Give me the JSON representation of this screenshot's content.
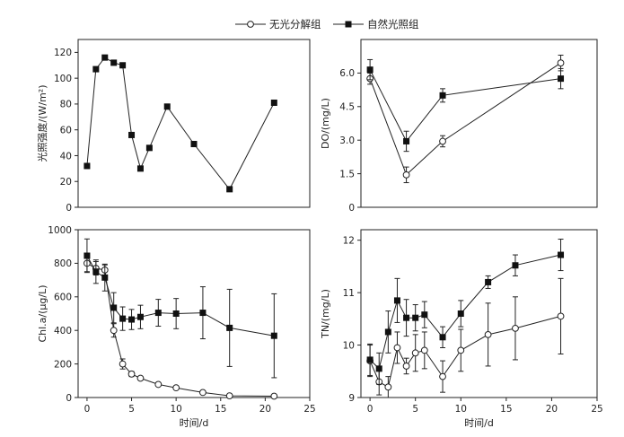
{
  "legend": {
    "series_dark": "无光分解组",
    "series_light": "自然光照组"
  },
  "chart_data": [
    {
      "id": "light",
      "type": "line",
      "ylabel": "光照强度/(W/m²)",
      "xlabel": "",
      "xlim": [
        -1,
        25
      ],
      "ylim": [
        0,
        130
      ],
      "xticks": [],
      "yticks": [
        0,
        20,
        40,
        60,
        80,
        100,
        120
      ],
      "series": [
        {
          "key": "light",
          "marker": "square",
          "x": [
            0,
            1,
            2,
            3,
            4,
            5,
            6,
            7,
            9,
            12,
            16,
            21
          ],
          "y": [
            32,
            107,
            116,
            112,
            110,
            56,
            30,
            46,
            78,
            49,
            14,
            81
          ]
        }
      ]
    },
    {
      "id": "do",
      "type": "line",
      "ylabel": "DO/(mg/L)",
      "xlabel": "",
      "xlim": [
        -1,
        25
      ],
      "ylim": [
        0,
        7.5
      ],
      "xticks": [],
      "yticks": [
        "0",
        "1.5",
        "3.0",
        "4.5",
        "6.0"
      ],
      "series": [
        {
          "key": "dark",
          "marker": "circle",
          "x": [
            0,
            4,
            8,
            21
          ],
          "y": [
            5.75,
            1.45,
            2.95,
            6.45
          ],
          "err": [
            0.25,
            0.35,
            0.25,
            0.35
          ]
        },
        {
          "key": "light",
          "marker": "square",
          "x": [
            0,
            4,
            8,
            21
          ],
          "y": [
            6.15,
            2.95,
            5.0,
            5.75
          ],
          "err": [
            0.45,
            0.45,
            0.3,
            0.45
          ]
        }
      ]
    },
    {
      "id": "chla",
      "type": "line",
      "ylabel": "Chl.a/(μg/L)",
      "xlabel": "时间/d",
      "xlim": [
        -1,
        25
      ],
      "ylim": [
        0,
        1000
      ],
      "xticks": [
        0,
        5,
        10,
        15,
        20,
        25
      ],
      "yticks": [
        0,
        200,
        400,
        600,
        800,
        1000
      ],
      "series": [
        {
          "key": "dark",
          "marker": "circle",
          "x": [
            0,
            1,
            2,
            3,
            4,
            5,
            6,
            8,
            10,
            13,
            16,
            21
          ],
          "y": [
            800,
            770,
            760,
            400,
            200,
            140,
            115,
            78,
            58,
            30,
            10,
            8
          ],
          "err": [
            50,
            40,
            30,
            40,
            30,
            15,
            10,
            8,
            8,
            8,
            5,
            5
          ]
        },
        {
          "key": "light",
          "marker": "square",
          "x": [
            0,
            1,
            2,
            3,
            4,
            5,
            6,
            8,
            10,
            13,
            16,
            21
          ],
          "y": [
            845,
            750,
            715,
            535,
            470,
            465,
            480,
            505,
            500,
            505,
            415,
            368
          ],
          "err": [
            100,
            70,
            80,
            90,
            70,
            60,
            70,
            80,
            90,
            155,
            230,
            250
          ]
        }
      ]
    },
    {
      "id": "tn",
      "type": "line",
      "ylabel": "TN/(mg/L)",
      "xlabel": "时间/d",
      "xlim": [
        -1,
        25
      ],
      "ylim": [
        9,
        12.2
      ],
      "xticks": [
        0,
        5,
        10,
        15,
        20,
        25
      ],
      "yticks": [
        9,
        10,
        11,
        12
      ],
      "series": [
        {
          "key": "dark",
          "marker": "circle",
          "x": [
            0,
            1,
            2,
            3,
            4,
            5,
            6,
            8,
            10,
            13,
            16,
            21
          ],
          "y": [
            9.7,
            9.3,
            9.2,
            9.95,
            9.6,
            9.85,
            9.9,
            9.4,
            9.9,
            10.2,
            10.32,
            10.55
          ],
          "err": [
            0.3,
            0.25,
            0.2,
            0.3,
            0.15,
            0.35,
            0.35,
            0.3,
            0.4,
            0.6,
            0.6,
            0.72
          ]
        },
        {
          "key": "light",
          "marker": "square",
          "x": [
            0,
            1,
            2,
            3,
            4,
            5,
            6,
            8,
            10,
            13,
            16,
            21
          ],
          "y": [
            9.72,
            9.55,
            10.25,
            10.85,
            10.52,
            10.52,
            10.58,
            10.15,
            10.6,
            11.2,
            11.52,
            11.72
          ],
          "err": [
            0.3,
            0.3,
            0.4,
            0.42,
            0.35,
            0.25,
            0.25,
            0.2,
            0.25,
            0.12,
            0.2,
            0.3
          ]
        }
      ]
    }
  ]
}
